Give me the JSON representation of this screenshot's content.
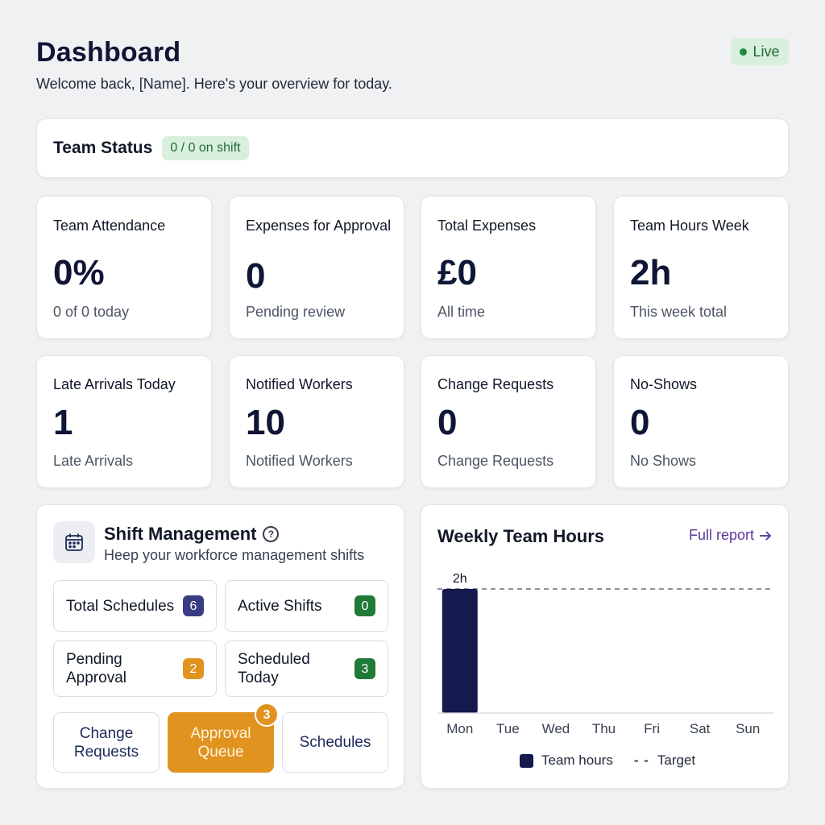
{
  "header": {
    "title": "Dashboard",
    "subtitle": "Welcome back, [Name]. Here's your overview for today.",
    "live_label": "Live"
  },
  "team_status": {
    "title": "Team Status",
    "badge": "0 / 0 on shift"
  },
  "stats": [
    {
      "label": "Team Attendance",
      "value": "0%",
      "sub": "0 of 0 today"
    },
    {
      "label": "Expenses for Approval",
      "value": "0",
      "sub": "Pending review"
    },
    {
      "label": "Total Expenses",
      "value": "£0",
      "sub": "All time"
    },
    {
      "label": "Team Hours Week",
      "value": "2h",
      "sub": "This week total"
    },
    {
      "label": "Late Arrivals Today",
      "value": "1",
      "sub": "Late Arrivals"
    },
    {
      "label": "Notified Workers",
      "value": "10",
      "sub": "Notified Workers"
    },
    {
      "label": "Change Requests",
      "value": "0",
      "sub": "Change Requests"
    },
    {
      "label": "No-Shows",
      "value": "0",
      "sub": "No Shows"
    }
  ],
  "shift_management": {
    "title": "Shift Management",
    "description": "Heep your workforce management shifts",
    "items": [
      {
        "label": "Total Schedules",
        "count": "6",
        "color": "#3b3b84"
      },
      {
        "label": "Active Shifts",
        "count": "0",
        "color": "#1f7a35"
      },
      {
        "label": "Pending Approval",
        "count": "2",
        "color": "#e0931f"
      },
      {
        "label": "Scheduled Today",
        "count": "3",
        "color": "#1f7a35"
      }
    ],
    "actions": {
      "change_requests": "Change Requests",
      "approval_queue": "Approval Queue",
      "approval_queue_badge": "3",
      "schedules": "Schedules"
    }
  },
  "weekly_hours": {
    "title": "Weekly Team Hours",
    "link": "Full report",
    "legend": {
      "bars": "Team hours",
      "target": "Target"
    }
  },
  "chart_data": {
    "type": "bar",
    "categories": [
      "Mon",
      "Tue",
      "Wed",
      "Thu",
      "Fri",
      "Sat",
      "Sun"
    ],
    "series": [
      {
        "name": "Team hours",
        "values": [
          2,
          0,
          0,
          0,
          0,
          0,
          0
        ]
      }
    ],
    "data_labels": [
      "2h",
      "",
      "",
      "",
      "",
      "",
      ""
    ],
    "target": 2,
    "ylim": [
      0,
      2
    ],
    "bar_color": "#141a4e",
    "grid": false,
    "legend_position": "bottom"
  }
}
